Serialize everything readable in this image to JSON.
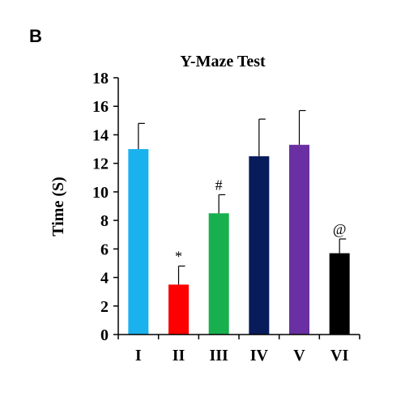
{
  "panel_label": "B",
  "chart_data": {
    "type": "bar",
    "title": "Y-Maze Test",
    "xlabel": "",
    "ylabel": "Time (S)",
    "ylim": [
      0,
      18
    ],
    "yticks": [
      0,
      2,
      4,
      6,
      8,
      10,
      12,
      14,
      16,
      18
    ],
    "categories": [
      "I",
      "II",
      "III",
      "IV",
      "V",
      "VI"
    ],
    "values": [
      13.0,
      3.5,
      8.5,
      12.5,
      13.3,
      5.7
    ],
    "errors": [
      1.8,
      1.3,
      1.3,
      2.6,
      2.4,
      1.0
    ],
    "bar_colors": [
      "#19b2ee",
      "#ff0000",
      "#18b04f",
      "#081c5c",
      "#6a2fa2",
      "#000000"
    ],
    "annotations": [
      "",
      "*",
      "#",
      "",
      "",
      "@"
    ],
    "grid": false,
    "legend": "none"
  }
}
